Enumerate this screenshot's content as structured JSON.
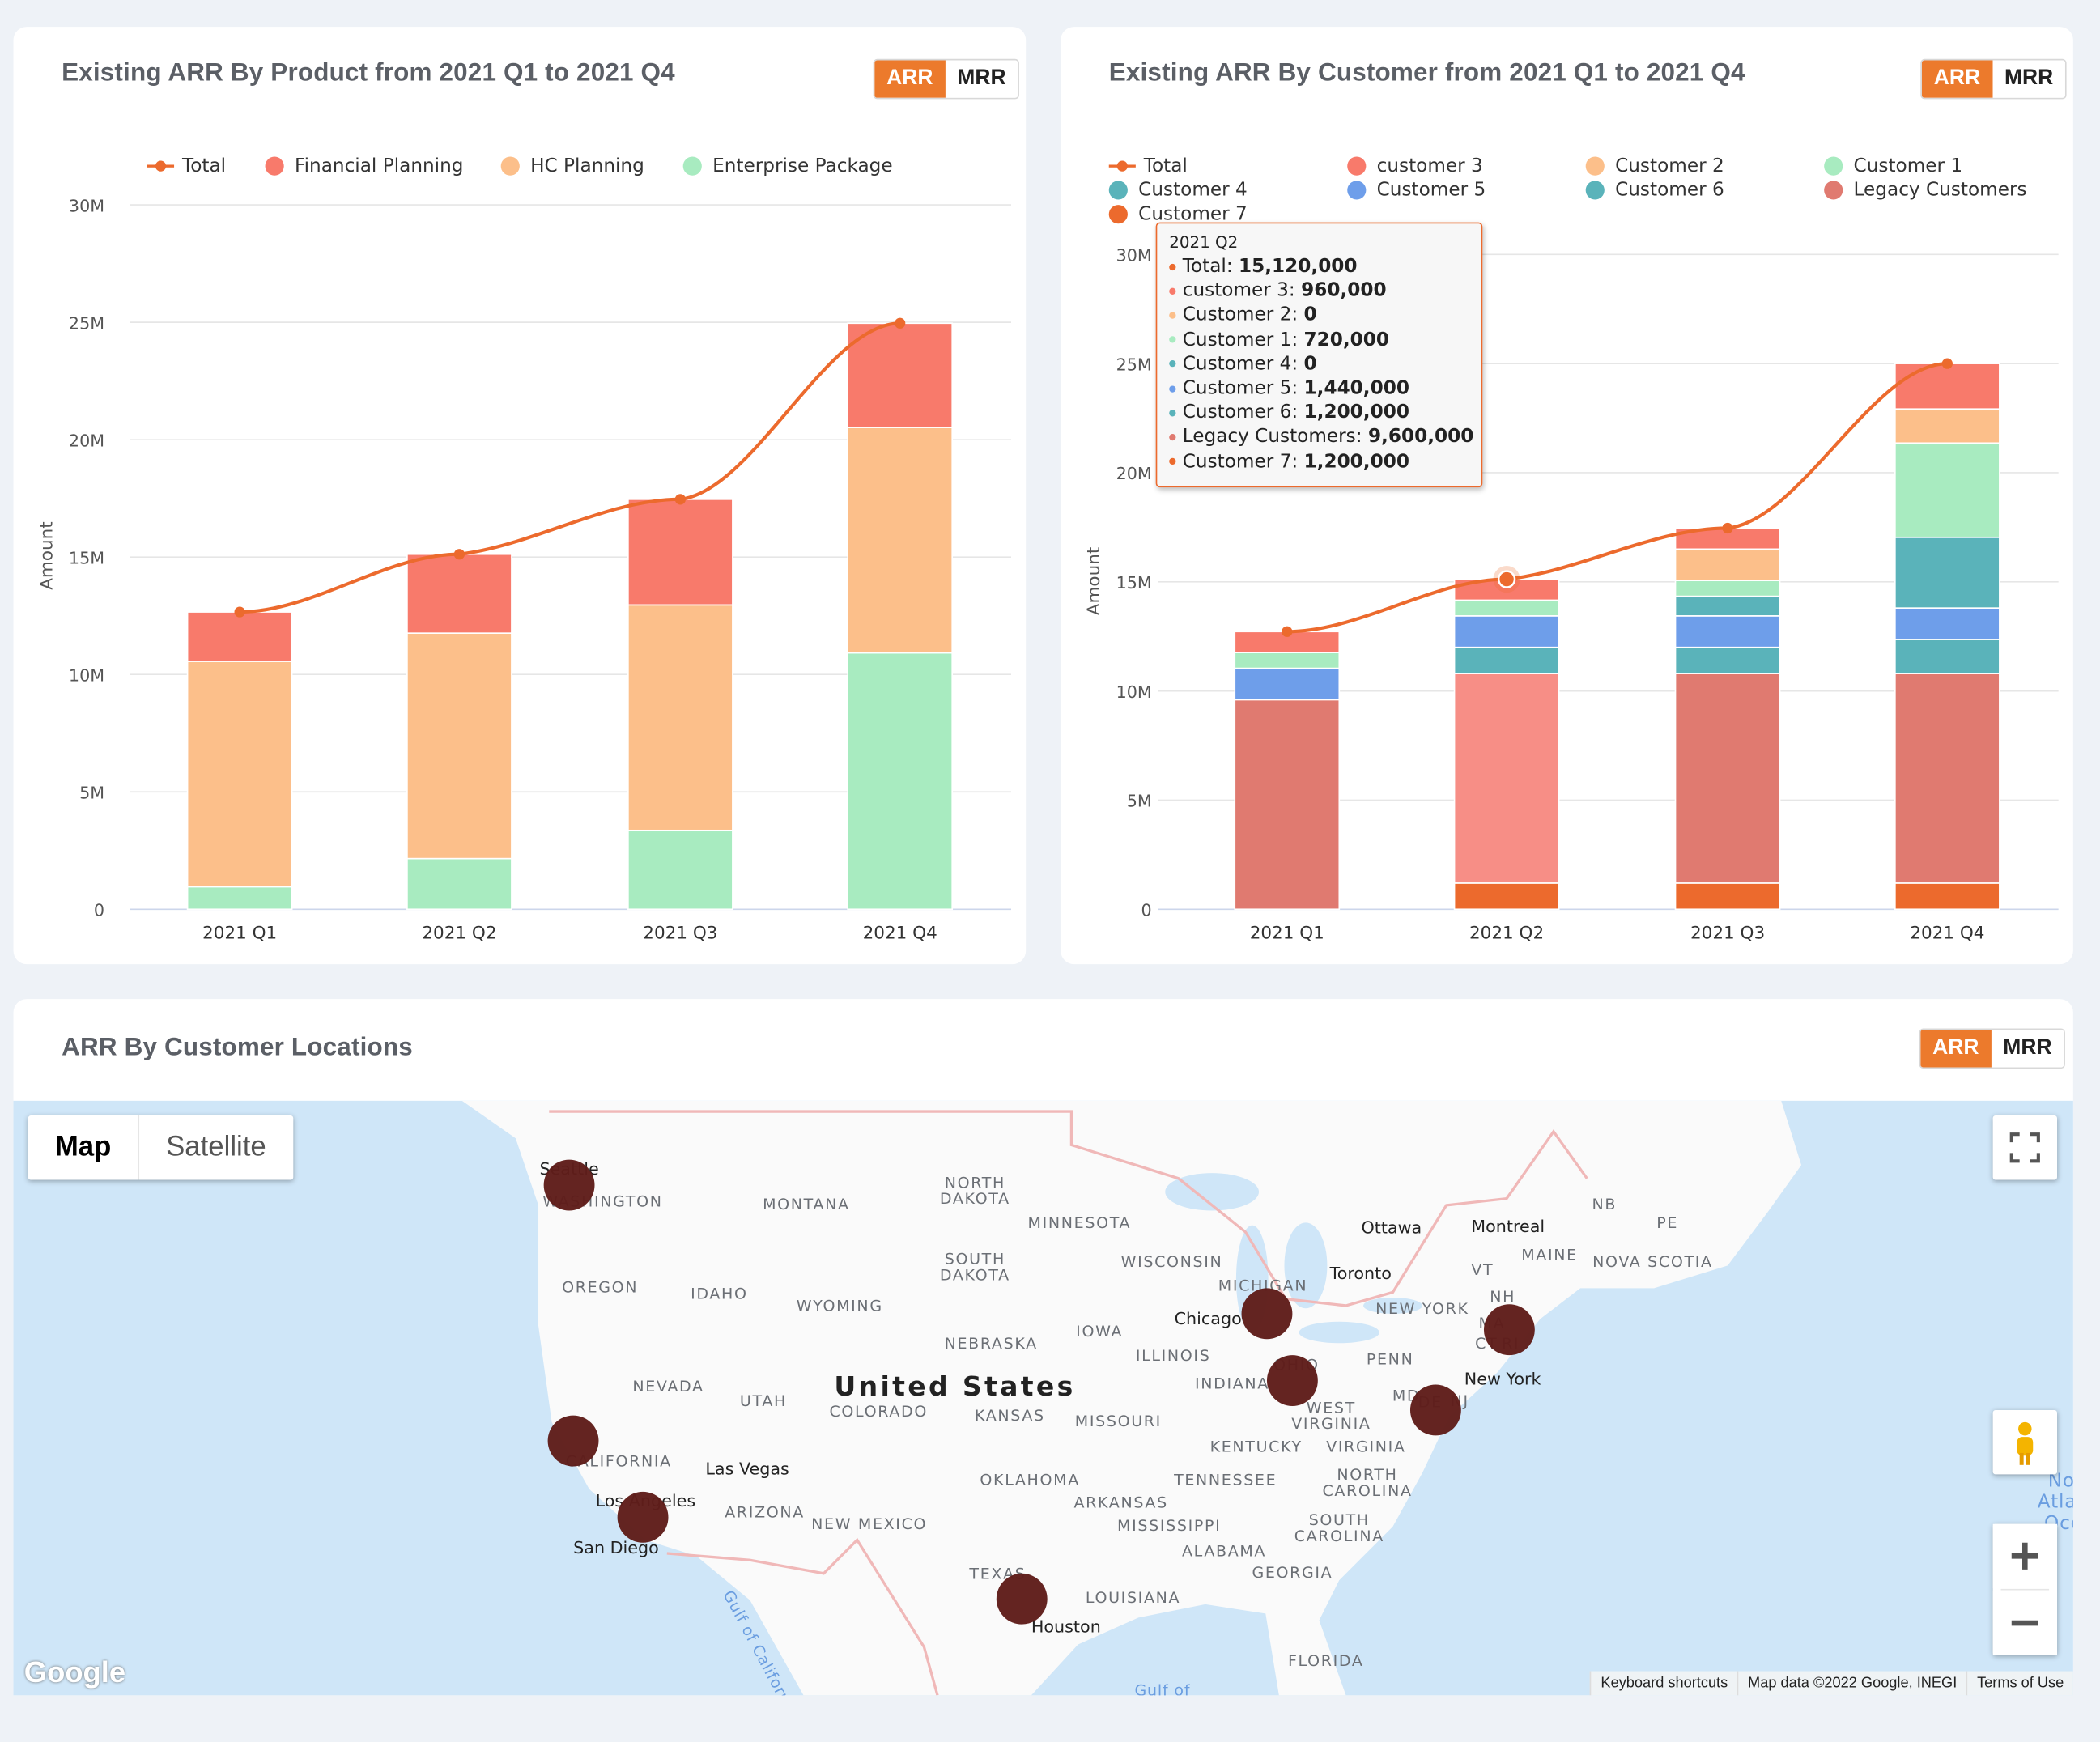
{
  "cards": {
    "product": {
      "title": "Existing ARR By Product from 2021 Q1 to 2021 Q4",
      "toggle": {
        "arr": "ARR",
        "mrr": "MRR",
        "active": "ARR"
      }
    },
    "customer": {
      "title": "Existing ARR By Customer from 2021 Q1 to 2021 Q4",
      "toggle": {
        "arr": "ARR",
        "mrr": "MRR",
        "active": "ARR"
      }
    },
    "locations": {
      "title": "ARR By Customer Locations",
      "toggle": {
        "arr": "ARR",
        "mrr": "MRR",
        "active": "ARR"
      }
    }
  },
  "tooltip": {
    "title": "2021 Q2",
    "rows": [
      {
        "label": "Total",
        "value": "15,120,000",
        "color": "#ec6a2d"
      },
      {
        "label": "customer 3",
        "value": "960,000",
        "color": "#f87a6b"
      },
      {
        "label": "Customer 2",
        "value": "0",
        "color": "#fcbf8a"
      },
      {
        "label": "Customer 1",
        "value": "720,000",
        "color": "#a8ebc0"
      },
      {
        "label": "Customer 4",
        "value": "0",
        "color": "#5ab3ba"
      },
      {
        "label": "Customer 5",
        "value": "1,440,000",
        "color": "#6e9eea"
      },
      {
        "label": "Customer 6",
        "value": "1,200,000",
        "color": "#5ab3ba"
      },
      {
        "label": "Legacy Customers",
        "value": "9,600,000",
        "color": "#e07a70"
      },
      {
        "label": "Customer 7",
        "value": "1,200,000",
        "color": "#ec6a2d"
      }
    ]
  },
  "chart_data": [
    {
      "type": "bar",
      "stacked": true,
      "title": "Existing ARR By Product from 2021 Q1 to 2021 Q4",
      "categories": [
        "2021 Q1",
        "2021 Q2",
        "2021 Q3",
        "2021 Q4"
      ],
      "ylabel": "Amount",
      "ylim": [
        0,
        30000000
      ],
      "yticks": [
        "0",
        "5M",
        "10M",
        "15M",
        "20M",
        "25M",
        "30M"
      ],
      "grid": true,
      "legend": "top",
      "line": {
        "name": "Total",
        "color": "#ec6a2d",
        "values": [
          12660000,
          15120000,
          17460000,
          24960000
        ]
      },
      "series": [
        {
          "name": "Financial Planning",
          "color": "#f87a6b",
          "values": [
            2100000,
            3360000,
            4500000,
            4440000
          ]
        },
        {
          "name": "HC Planning",
          "color": "#fcbf8a",
          "values": [
            9600000,
            9600000,
            9600000,
            9600000
          ]
        },
        {
          "name": "Enterprise Package",
          "color": "#a8ebc0",
          "values": [
            960000,
            2160000,
            3360000,
            10920000
          ]
        }
      ]
    },
    {
      "type": "bar",
      "stacked": true,
      "title": "Existing ARR By Customer from 2021 Q1 to 2021 Q4",
      "categories": [
        "2021 Q1",
        "2021 Q2",
        "2021 Q3",
        "2021 Q4"
      ],
      "ylabel": "Amount",
      "ylim": [
        0,
        30000000
      ],
      "yticks": [
        "0",
        "5M",
        "10M",
        "15M",
        "20M",
        "25M",
        "30M"
      ],
      "grid": true,
      "legend": "top",
      "line": {
        "name": "Total",
        "color": "#ec6a2d",
        "values": [
          12720000,
          15120000,
          17460000,
          25000000
        ]
      },
      "series": [
        {
          "name": "customer 3",
          "color": "#f87a6b",
          "values": [
            960000,
            960000,
            960000,
            2080000
          ]
        },
        {
          "name": "Customer 2",
          "color": "#fcbf8a",
          "values": [
            0,
            0,
            1440000,
            1560000
          ]
        },
        {
          "name": "Customer 1",
          "color": "#a8ebc0",
          "values": [
            720000,
            720000,
            720000,
            4320000
          ]
        },
        {
          "name": "Customer 4",
          "color": "#5ab3ba",
          "values": [
            0,
            0,
            900000,
            3240000
          ]
        },
        {
          "name": "Customer 5",
          "color": "#6e9eea",
          "values": [
            1440000,
            1440000,
            1440000,
            1440000
          ]
        },
        {
          "name": "Customer 6",
          "color": "#5ab3ba",
          "values": [
            0,
            1200000,
            1200000,
            1560000
          ]
        },
        {
          "name": "Legacy Customers",
          "color": "#e07a70",
          "values": [
            9600000,
            9600000,
            9600000,
            9600000
          ]
        },
        {
          "name": "Customer 7",
          "color": "#ec6a2d",
          "values": [
            0,
            1200000,
            1200000,
            1200000
          ]
        }
      ]
    }
  ],
  "map": {
    "type_buttons": {
      "map": "Map",
      "satellite": "Satellite",
      "active": "Map"
    },
    "country": "United States",
    "regions": [
      "WASHINGTON",
      "MONTANA",
      "NORTH\nDAKOTA",
      "MINNESOTA",
      "OREGON",
      "IDAHO",
      "WYOMING",
      "SOUTH\nDAKOTA",
      "WISCONSIN",
      "MICHIGAN",
      "IOWA",
      "NEBRASKA",
      "ILLINOIS",
      "NEW YORK",
      "PENN",
      "OHIO",
      "INDIANA",
      "NEVADA",
      "UTAH",
      "COLORADO",
      "KANSAS",
      "MISSOURI",
      "WEST\nVIRGINIA",
      "KENTUCKY",
      "VIRGINIA",
      "CALIFORNIA",
      "OKLAHOMA",
      "TENNESSEE",
      "NORTH\nCAROLINA",
      "ARKANSAS",
      "ARIZONA",
      "NEW MEXICO",
      "MISSISSIPPI",
      "SOUTH\nCAROLINA",
      "ALABAMA",
      "GEORGIA",
      "TEXAS",
      "LOUISIANA",
      "FLORIDA",
      "MAINE",
      "NB",
      "PE",
      "NOVA SCOTIA",
      "VT",
      "NH",
      "MA",
      "CT",
      "RI",
      "MD",
      "DE",
      "NJ"
    ],
    "cities": [
      "Seattle",
      "Ottawa",
      "Montreal",
      "Toronto",
      "Chicago",
      "New York",
      "Las Vegas",
      "Los Angeles",
      "San Diego",
      "Houston"
    ],
    "water": [
      "Gulf of California",
      "Gulf of",
      "North\nAtlantic\nOcean"
    ],
    "bubble_color": "#5f1d1a",
    "attribution": [
      "Keyboard shortcuts",
      "Map data ©2022 Google, INEGI",
      "Terms of Use"
    ],
    "logo": "Google"
  }
}
